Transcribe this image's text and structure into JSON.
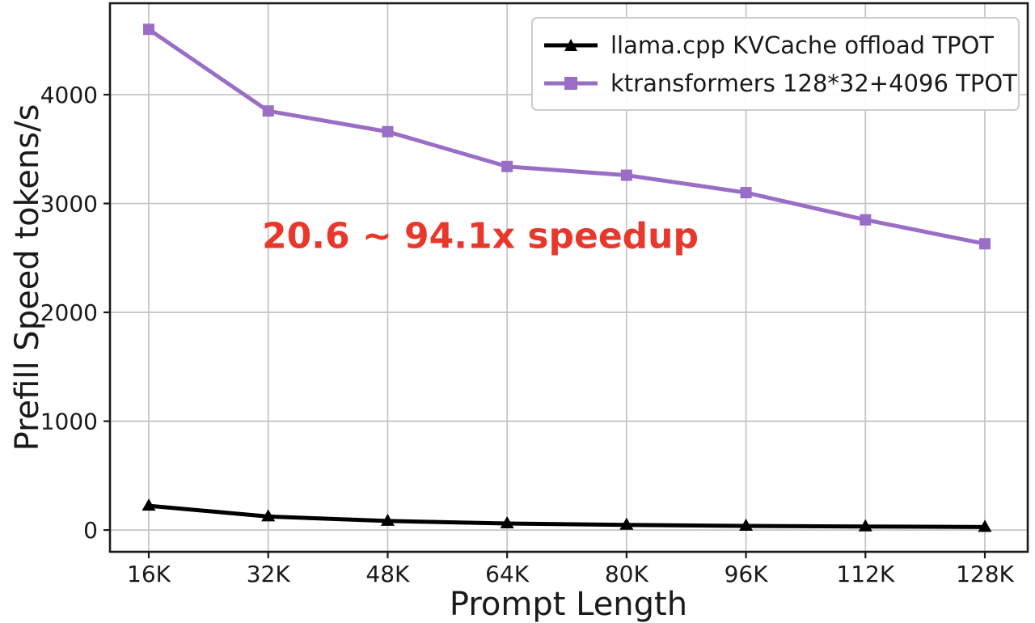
{
  "chart_data": {
    "type": "line",
    "title": "",
    "xlabel": "Prompt Length",
    "ylabel": "Prefill Speed tokens/s",
    "categories": [
      "16K",
      "32K",
      "48K",
      "64K",
      "80K",
      "96K",
      "112K",
      "128K"
    ],
    "series": [
      {
        "name": "llama.cpp KVCache offload TPOT",
        "color": "#000000",
        "marker": "triangle",
        "values": [
          223,
          124,
          83,
          60,
          47,
          38,
          32,
          28
        ]
      },
      {
        "name": "ktransformers 128*32+4096 TPOT",
        "color": "#9a6ec6",
        "marker": "square",
        "values": [
          4600,
          3850,
          3660,
          3340,
          3260,
          3100,
          2850,
          2630
        ]
      }
    ],
    "y_ticks": [
      0,
      1000,
      2000,
      3000,
      4000
    ],
    "ylim": [
      -200,
      4840
    ],
    "grid": true,
    "legend_position": "top-right",
    "annotation": {
      "text": "20.6 ~ 94.1x speedup",
      "color": "#e8382c"
    }
  }
}
